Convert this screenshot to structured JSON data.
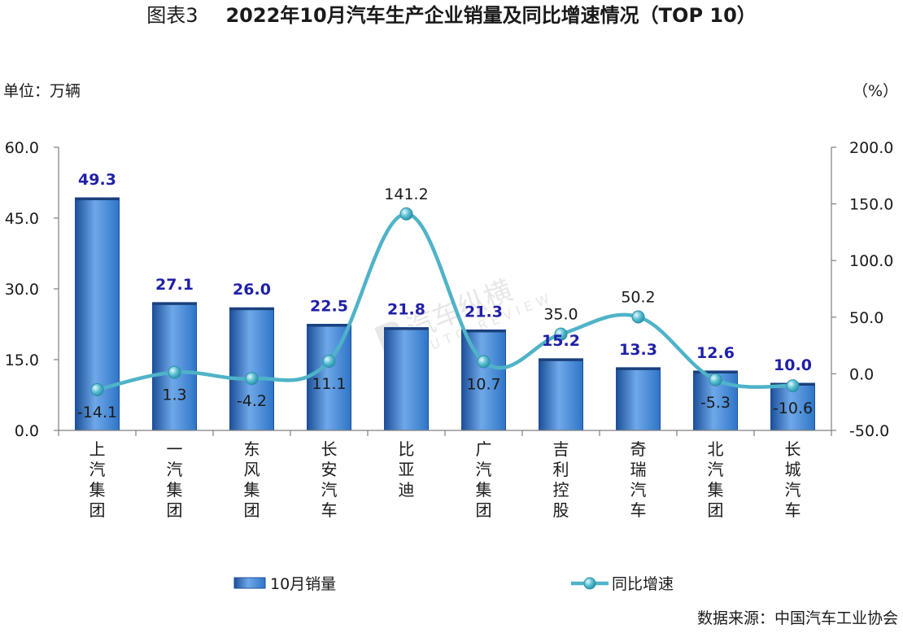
{
  "header": {
    "title_prefix": "图表3",
    "title": "2022年10月汽车生产企业销量及同比增速情况（TOP 10）",
    "unit_left": "单位：万辆",
    "unit_right": "（%）",
    "source": "数据来源：中国汽车工业协会"
  },
  "watermark": {
    "text": "汽车纵横",
    "sub": "AUTO REVIEW"
  },
  "colors": {
    "bar": "#2e75c7",
    "bar_light": "#6fa8e8",
    "bar_dark": "#1c4f9a",
    "line": "#4fb3c8",
    "bar_label": "#1f1fa8",
    "axis": "#7f7f7f"
  },
  "chart_data": {
    "type": "bar",
    "categories": [
      "上汽集团",
      "一汽集团",
      "东风集团",
      "长安汽车",
      "比亚迪",
      "广汽集团",
      "吉利控股",
      "奇瑞汽车",
      "北汽集团",
      "长城汽车"
    ],
    "series": [
      {
        "name": "10月销量",
        "type": "bar",
        "axis": "left",
        "values": [
          49.3,
          27.1,
          26.0,
          22.5,
          21.8,
          21.3,
          15.2,
          13.3,
          12.6,
          10.0
        ],
        "labels": [
          "49.3",
          "27.1",
          "26.0",
          "22.5",
          "21.8",
          "21.3",
          "15.2",
          "13.3",
          "12.6",
          "10.0"
        ]
      },
      {
        "name": "同比增速",
        "type": "line",
        "axis": "right",
        "values": [
          -14.1,
          1.3,
          -4.2,
          11.1,
          141.2,
          10.7,
          35.0,
          50.2,
          -5.3,
          -10.6
        ],
        "labels": [
          "-14.1",
          "1.3",
          "-4.2",
          "11.1",
          "141.2",
          "10.7",
          "35.0",
          "50.2",
          "-5.3",
          "-10.6"
        ]
      }
    ],
    "y_left": {
      "min": 0,
      "max": 60,
      "ticks": [
        "0.0",
        "15.0",
        "30.0",
        "45.0",
        "60.0"
      ]
    },
    "y_right": {
      "min": -50,
      "max": 200,
      "ticks": [
        "-50.0",
        "0.0",
        "50.0",
        "100.0",
        "150.0",
        "200.0"
      ]
    },
    "legend_position": "bottom",
    "grid": false
  }
}
